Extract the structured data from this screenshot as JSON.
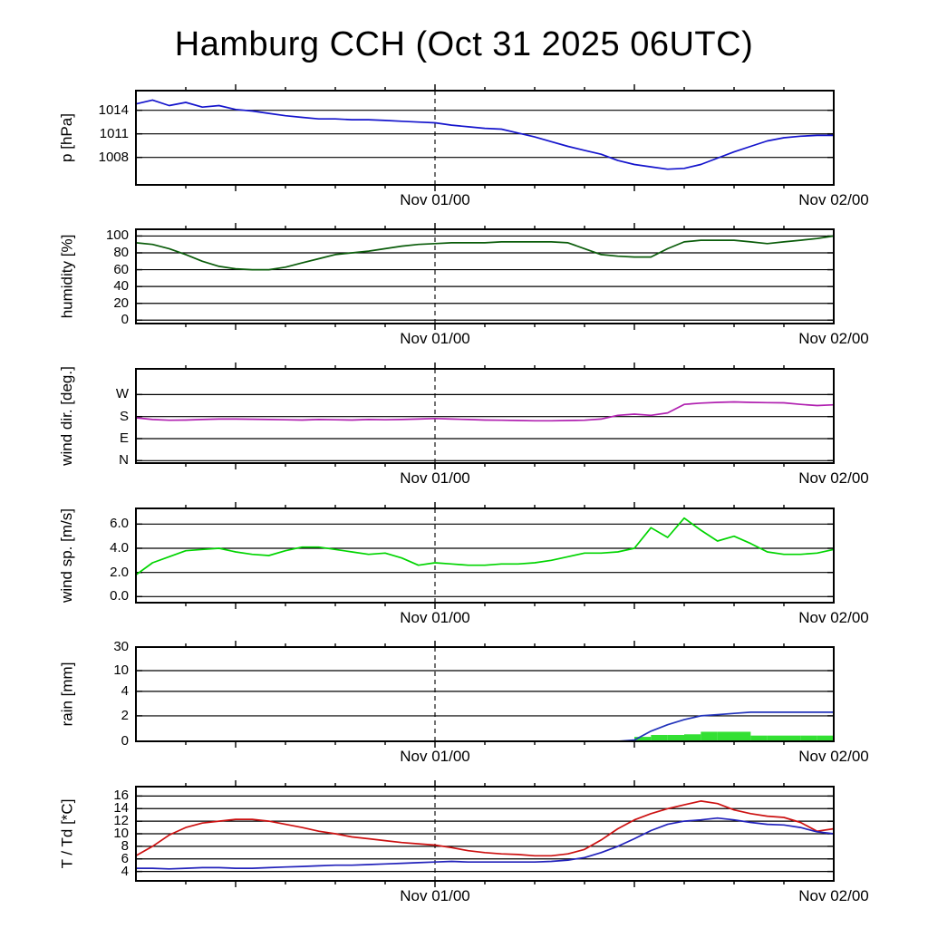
{
  "title": "Hamburg CCH (Oct 31 2025 06UTC)",
  "x_axis": {
    "start_hour": 0,
    "end_hour": 42,
    "dashed_line_hour": 18,
    "labels": [
      {
        "hour": 18,
        "text": "Nov 01/00"
      },
      {
        "hour": 42,
        "text": "Nov 02/00"
      }
    ]
  },
  "chart_data": [
    {
      "id": "pressure",
      "type": "line",
      "ylabel": "p [hPa]",
      "ylim": [
        1004.5,
        1016.5
      ],
      "yticks": [
        {
          "value": 1014,
          "label": "1014"
        },
        {
          "value": 1011,
          "label": "1011"
        },
        {
          "value": 1008,
          "label": "1008"
        }
      ],
      "series": [
        {
          "name": "pressure",
          "color": "#1414cc",
          "values": [
            1014.8,
            1015.3,
            1014.6,
            1015.0,
            1014.4,
            1014.6,
            1014.1,
            1013.9,
            1013.6,
            1013.3,
            1013.1,
            1012.9,
            1012.9,
            1012.8,
            1012.8,
            1012.7,
            1012.6,
            1012.5,
            1012.4,
            1012.1,
            1011.9,
            1011.7,
            1011.6,
            1011.1,
            1010.6,
            1010.0,
            1009.4,
            1008.9,
            1008.4,
            1007.6,
            1007.1,
            1006.8,
            1006.5,
            1006.6,
            1007.1,
            1007.9,
            1008.7,
            1009.4,
            1010.1,
            1010.5,
            1010.7,
            1010.8,
            1010.8
          ]
        }
      ]
    },
    {
      "id": "humidity",
      "type": "line",
      "ylabel": "humidity [%]",
      "ylim": [
        -4,
        108
      ],
      "yticks": [
        {
          "value": 100,
          "label": "100"
        },
        {
          "value": 80,
          "label": "80"
        },
        {
          "value": 60,
          "label": "60"
        },
        {
          "value": 40,
          "label": "40"
        },
        {
          "value": 20,
          "label": "20"
        },
        {
          "value": 0,
          "label": "0"
        }
      ],
      "series": [
        {
          "name": "humidity",
          "color": "#0a5c0a",
          "values": [
            92,
            90,
            85,
            78,
            70,
            64,
            61,
            60,
            60,
            63,
            68,
            73,
            78,
            80,
            82,
            85,
            88,
            90,
            91,
            92,
            92,
            92,
            93,
            93,
            93,
            93,
            92,
            85,
            78,
            76,
            75,
            75,
            85,
            93,
            95,
            95,
            95,
            93,
            91,
            93,
            95,
            97,
            100
          ]
        }
      ]
    },
    {
      "id": "wind-direction",
      "type": "line",
      "ylabel": "wind dir. [deg.]",
      "ylim": [
        -10,
        375
      ],
      "yticks": [
        {
          "value": 270,
          "label": "W"
        },
        {
          "value": 180,
          "label": "S"
        },
        {
          "value": 90,
          "label": "E"
        },
        {
          "value": 0,
          "label": "N"
        }
      ],
      "series": [
        {
          "name": "wind-direction",
          "color": "#b020b0",
          "values": [
            175,
            168,
            165,
            166,
            168,
            170,
            170,
            169,
            168,
            167,
            166,
            168,
            167,
            166,
            168,
            167,
            168,
            170,
            172,
            170,
            168,
            166,
            165,
            164,
            163,
            163,
            164,
            165,
            170,
            185,
            190,
            185,
            195,
            230,
            235,
            238,
            240,
            238,
            237,
            236,
            230,
            225,
            228
          ]
        }
      ]
    },
    {
      "id": "wind-speed",
      "type": "line",
      "ylabel": "wind sp. [m/s]",
      "ylim": [
        -0.5,
        7.3
      ],
      "yticks": [
        {
          "value": 6,
          "label": "6.0"
        },
        {
          "value": 4,
          "label": "4.0"
        },
        {
          "value": 2,
          "label": "2.0"
        },
        {
          "value": 0,
          "label": "0.0"
        }
      ],
      "series": [
        {
          "name": "wind-speed",
          "color": "#00d400",
          "values": [
            1.8,
            2.8,
            3.3,
            3.8,
            3.9,
            4.0,
            3.7,
            3.5,
            3.4,
            3.8,
            4.1,
            4.1,
            3.9,
            3.7,
            3.5,
            3.6,
            3.2,
            2.6,
            2.8,
            2.7,
            2.6,
            2.6,
            2.7,
            2.7,
            2.8,
            3.0,
            3.3,
            3.6,
            3.6,
            3.7,
            4.0,
            5.7,
            4.9,
            6.5,
            5.5,
            4.6,
            5.0,
            4.4,
            3.7,
            3.5,
            3.5,
            3.6,
            3.9
          ]
        }
      ]
    },
    {
      "id": "rain",
      "type": "mixed-bar-line",
      "ylabel": "rain [mm]",
      "ylim": [
        0,
        30
      ],
      "scale_anchors": [
        [
          0,
          0
        ],
        [
          2,
          0.27
        ],
        [
          4,
          0.53
        ],
        [
          10,
          0.75
        ],
        [
          30,
          1.0
        ]
      ],
      "yticks": [
        {
          "value": 30,
          "label": "30"
        },
        {
          "value": 10,
          "label": "10"
        },
        {
          "value": 4,
          "label": "4"
        },
        {
          "value": 2,
          "label": "2"
        },
        {
          "value": 0,
          "label": "0"
        }
      ],
      "bars": {
        "name": "rain-hourly-bars",
        "color": "#33e033",
        "values": [
          0,
          0,
          0,
          0,
          0,
          0,
          0,
          0,
          0,
          0,
          0,
          0,
          0,
          0,
          0,
          0,
          0,
          0,
          0,
          0,
          0,
          0,
          0,
          0,
          0,
          0,
          0,
          0,
          0,
          0,
          0.35,
          0.5,
          0.5,
          0.55,
          0.75,
          0.75,
          0.75,
          0.45,
          0.45,
          0.45,
          0.45,
          0.45
        ]
      },
      "series": [
        {
          "name": "rain-accumulated",
          "color": "#2233bb",
          "values": [
            0,
            0,
            0,
            0,
            0,
            0,
            0,
            0,
            0,
            0,
            0,
            0,
            0,
            0,
            0,
            0,
            0,
            0,
            0,
            0,
            0,
            0,
            0,
            0,
            0,
            0,
            0,
            0,
            0,
            0,
            0.1,
            0.8,
            1.3,
            1.7,
            2.0,
            2.1,
            2.2,
            2.3,
            2.3,
            2.3,
            2.3,
            2.3,
            2.3
          ]
        }
      ]
    },
    {
      "id": "temperature",
      "type": "line",
      "ylabel": "T / Td [*C]",
      "ylim": [
        2.5,
        17.5
      ],
      "yticks": [
        {
          "value": 16,
          "label": "16"
        },
        {
          "value": 14,
          "label": "14"
        },
        {
          "value": 12,
          "label": "12"
        },
        {
          "value": 10,
          "label": "10"
        },
        {
          "value": 8,
          "label": "8"
        },
        {
          "value": 6,
          "label": "6"
        },
        {
          "value": 4,
          "label": "4"
        }
      ],
      "series": [
        {
          "name": "temperature",
          "color": "#cc1111",
          "values": [
            6.5,
            8.0,
            9.8,
            11.0,
            11.7,
            12.0,
            12.3,
            12.3,
            12.0,
            11.5,
            11.0,
            10.4,
            10.0,
            9.5,
            9.2,
            8.9,
            8.6,
            8.4,
            8.2,
            7.8,
            7.3,
            7.0,
            6.8,
            6.7,
            6.5,
            6.5,
            6.8,
            7.5,
            9.0,
            10.8,
            12.2,
            13.2,
            14.0,
            14.6,
            15.2,
            14.8,
            13.8,
            13.2,
            12.8,
            12.6,
            11.8,
            10.4,
            10.8
          ]
        },
        {
          "name": "dewpoint",
          "color": "#2222bb",
          "values": [
            4.5,
            4.5,
            4.4,
            4.5,
            4.6,
            4.6,
            4.5,
            4.5,
            4.6,
            4.7,
            4.8,
            4.9,
            5.0,
            5.0,
            5.1,
            5.2,
            5.3,
            5.4,
            5.5,
            5.6,
            5.5,
            5.5,
            5.5,
            5.5,
            5.5,
            5.6,
            5.8,
            6.2,
            7.0,
            8.0,
            9.2,
            10.5,
            11.5,
            12.0,
            12.2,
            12.5,
            12.2,
            11.8,
            11.5,
            11.4,
            11.0,
            10.3,
            10.0
          ]
        }
      ]
    }
  ]
}
